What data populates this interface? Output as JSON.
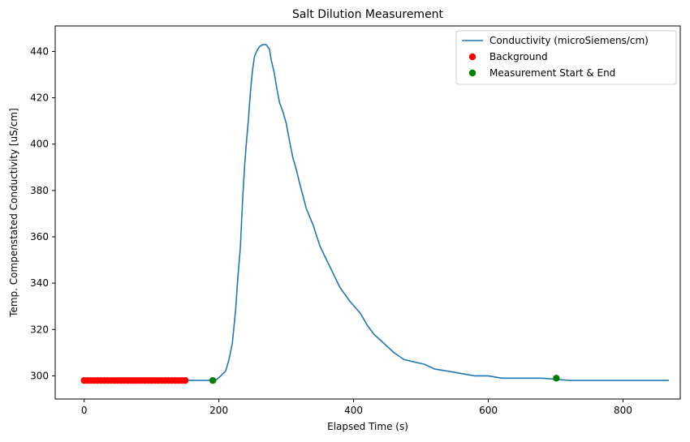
{
  "chart_data": {
    "type": "line",
    "title": "Salt Dilution Measurement",
    "xlabel": "Elapsed Time (s)",
    "ylabel": "Temp. Compenstated Conductivity [uS/cm]",
    "xlim": [
      -43,
      885
    ],
    "ylim": [
      290,
      451
    ],
    "xticks": [
      0,
      200,
      400,
      600,
      800
    ],
    "yticks": [
      300,
      320,
      340,
      360,
      380,
      400,
      420,
      440
    ],
    "grid": false,
    "legend_position": "top-right",
    "colors": {
      "line": "#1f77b4",
      "background": "#ff0000",
      "measurement": "#008000"
    },
    "series": [
      {
        "name": "Conductivity (microSiemens/cm)",
        "kind": "line",
        "color": "#1f77b4",
        "x": [
          0,
          150,
          195,
          203,
          210,
          215,
          220,
          225,
          228,
          232,
          235,
          238,
          241,
          244,
          247,
          250,
          253,
          256,
          260,
          265,
          270,
          275,
          278,
          282,
          286,
          290,
          295,
          300,
          305,
          310,
          315,
          320,
          330,
          340,
          350,
          360,
          370,
          380,
          395,
          410,
          420,
          430,
          445,
          460,
          475,
          490,
          505,
          520,
          540,
          560,
          580,
          600,
          620,
          640,
          660,
          680,
          720,
          740,
          760,
          780,
          800,
          868
        ],
        "y": [
          298,
          298,
          298,
          300,
          302,
          307,
          314,
          329,
          342,
          356,
          375,
          390,
          401,
          411,
          423,
          432,
          438,
          440,
          442,
          443,
          443,
          441,
          436,
          431,
          424,
          418,
          414,
          409,
          401,
          394,
          389,
          383,
          372,
          365,
          356,
          350,
          344,
          338,
          332,
          327,
          322,
          318,
          314,
          310,
          307,
          306,
          305,
          303,
          302,
          301,
          300,
          300,
          299,
          299,
          299,
          299,
          298,
          298,
          298,
          298,
          298,
          298
        ]
      },
      {
        "name": "Background",
        "kind": "points",
        "color": "#ff0000",
        "x": [
          0,
          5,
          10,
          15,
          20,
          25,
          30,
          35,
          40,
          45,
          50,
          55,
          60,
          65,
          70,
          75,
          80,
          85,
          90,
          95,
          100,
          105,
          110,
          115,
          120,
          125,
          130,
          135,
          140,
          145,
          150
        ],
        "y": [
          298,
          298,
          298,
          298,
          298,
          298,
          298,
          298,
          298,
          298,
          298,
          298,
          298,
          298,
          298,
          298,
          298,
          298,
          298,
          298,
          298,
          298,
          298,
          298,
          298,
          298,
          298,
          298,
          298,
          298,
          298
        ]
      },
      {
        "name": "Measurement Start & End",
        "kind": "points",
        "color": "#008000",
        "x": [
          191,
          701
        ],
        "y": [
          298,
          299
        ]
      }
    ]
  }
}
